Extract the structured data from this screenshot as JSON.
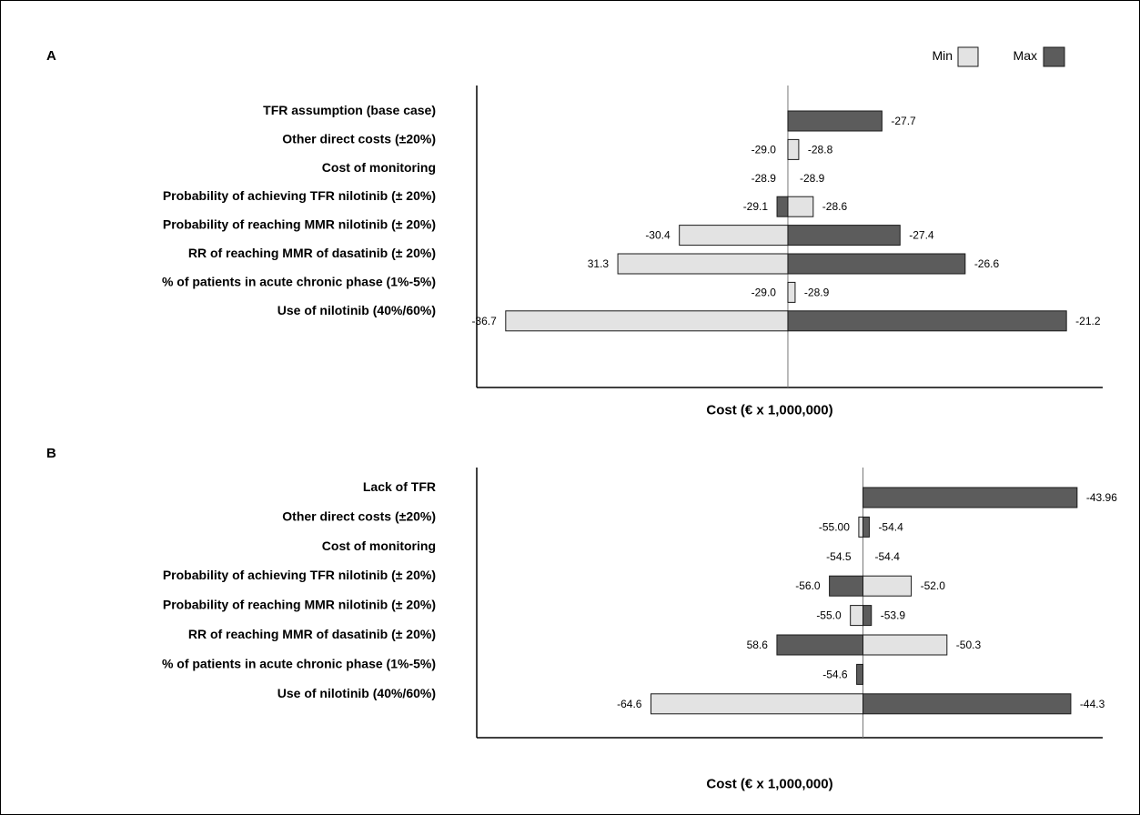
{
  "legend": {
    "min_label": "Min",
    "max_label": "Max"
  },
  "colors": {
    "min": "#e3e3e3",
    "max": "#5c5c5c",
    "stroke": "#1a1a1a"
  },
  "chart_data": [
    {
      "type": "bar",
      "subtype": "tornado",
      "panel_label": "A",
      "xlabel": "Cost (€ x 1,000,000)",
      "base_value": -28.9,
      "xlim": [
        -37.5,
        -20.5
      ],
      "rows": [
        {
          "category": "TFR assumption (base case)",
          "bars": [
            {
              "series": "Max",
              "from": -28.9,
              "to": -26.3
            }
          ],
          "labels": [
            {
              "text": "-27.7",
              "side": "right"
            }
          ]
        },
        {
          "category": "Other direct costs (±20%)",
          "bars": [
            {
              "series": "Min",
              "from": -28.9,
              "to": -28.6
            }
          ],
          "labels": [
            {
              "text": "-29.0",
              "side": "left"
            },
            {
              "text": "-28.8",
              "side": "right"
            }
          ]
        },
        {
          "category": "Cost of monitoring",
          "bars": [],
          "labels": [
            {
              "text": "-28.9",
              "side": "left"
            },
            {
              "text": "-28.9",
              "side": "right"
            }
          ]
        },
        {
          "category": "Probability of achieving TFR nilotinib (± 20%)",
          "bars": [
            {
              "series": "Max",
              "from": -29.2,
              "to": -28.9
            },
            {
              "series": "Min",
              "from": -28.9,
              "to": -28.2
            }
          ],
          "labels": [
            {
              "text": "-29.1",
              "side": "left"
            },
            {
              "text": "-28.6",
              "side": "right"
            }
          ]
        },
        {
          "category": "Probability of reaching MMR nilotinib (± 20%)",
          "bars": [
            {
              "series": "Min",
              "from": -31.9,
              "to": -28.9
            },
            {
              "series": "Max",
              "from": -28.9,
              "to": -25.8
            }
          ],
          "labels": [
            {
              "text": "-30.4",
              "side": "left"
            },
            {
              "text": "-27.4",
              "side": "right"
            }
          ]
        },
        {
          "category": "RR of reaching MMR of dasatinib (± 20%)",
          "bars": [
            {
              "series": "Min",
              "from": -33.6,
              "to": -28.9
            },
            {
              "series": "Max",
              "from": -28.9,
              "to": -24.0
            }
          ],
          "labels": [
            {
              "text": "31.3",
              "side": "left"
            },
            {
              "text": "-26.6",
              "side": "right"
            }
          ]
        },
        {
          "category": "% of patients in acute chronic phase (1%-5%)",
          "bars": [
            {
              "series": "Min",
              "from": -28.9,
              "to": -28.7
            }
          ],
          "labels": [
            {
              "text": "-29.0",
              "side": "left"
            },
            {
              "text": "-28.9",
              "side": "right"
            }
          ]
        },
        {
          "category": "Use of nilotinib (40%/60%)",
          "bars": [
            {
              "series": "Min",
              "from": -36.7,
              "to": -28.9
            },
            {
              "series": "Max",
              "from": -28.9,
              "to": -21.2
            }
          ],
          "labels": [
            {
              "text": "-36.7",
              "side": "left"
            },
            {
              "text": "-21.2",
              "side": "right"
            }
          ]
        }
      ]
    },
    {
      "type": "bar",
      "subtype": "tornado",
      "panel_label": "B",
      "xlabel": "Cost (€ x 1,000,000)",
      "base_value": -54.5,
      "xlim": [
        -72.9,
        -43.6
      ],
      "rows": [
        {
          "category": "Lack of TFR",
          "bars": [
            {
              "series": "Max",
              "from": -54.5,
              "to": -44.3
            }
          ],
          "labels": [
            {
              "text": "-43.96",
              "side": "right"
            }
          ]
        },
        {
          "category": "Other direct costs (±20%)",
          "bars": [
            {
              "series": "Min",
              "from": -54.7,
              "to": -54.5
            },
            {
              "series": "Max",
              "from": -54.5,
              "to": -54.2
            }
          ],
          "labels": [
            {
              "text": "-55.00",
              "side": "left"
            },
            {
              "text": "-54.4",
              "side": "right"
            }
          ]
        },
        {
          "category": "Cost of monitoring",
          "bars": [],
          "labels": [
            {
              "text": "-54.5",
              "side": "left"
            },
            {
              "text": "-54.4",
              "side": "right"
            }
          ]
        },
        {
          "category": "Probability of achieving TFR nilotinib (± 20%)",
          "bars": [
            {
              "series": "Max",
              "from": -56.1,
              "to": -54.5
            },
            {
              "series": "Min",
              "from": -54.5,
              "to": -52.2
            }
          ],
          "labels": [
            {
              "text": "-56.0",
              "side": "left"
            },
            {
              "text": "-52.0",
              "side": "right"
            }
          ]
        },
        {
          "category": "Probability of reaching MMR nilotinib (± 20%)",
          "bars": [
            {
              "series": "Min",
              "from": -55.1,
              "to": -54.5
            },
            {
              "series": "Max",
              "from": -54.5,
              "to": -54.1
            }
          ],
          "labels": [
            {
              "text": "-55.0",
              "side": "left"
            },
            {
              "text": "-53.9",
              "side": "right"
            }
          ]
        },
        {
          "category": "RR of reaching MMR of dasatinib (± 20%)",
          "bars": [
            {
              "series": "Max",
              "from": -58.6,
              "to": -54.5
            },
            {
              "series": "Min",
              "from": -54.5,
              "to": -50.5
            }
          ],
          "labels": [
            {
              "text": "58.6",
              "side": "left"
            },
            {
              "text": "-50.3",
              "side": "right"
            }
          ]
        },
        {
          "category": "% of patients in acute chronic phase (1%-5%)",
          "bars": [
            {
              "series": "Max",
              "from": -54.8,
              "to": -54.5
            }
          ],
          "labels": [
            {
              "text": "-54.6",
              "side": "left"
            }
          ]
        },
        {
          "category": "Use of nilotinib (40%/60%)",
          "bars": [
            {
              "series": "Min",
              "from": -64.6,
              "to": -54.5
            },
            {
              "series": "Max",
              "from": -54.5,
              "to": -44.6
            }
          ],
          "labels": [
            {
              "text": "-64.6",
              "side": "left"
            },
            {
              "text": "-44.3",
              "side": "right"
            }
          ]
        }
      ]
    }
  ]
}
